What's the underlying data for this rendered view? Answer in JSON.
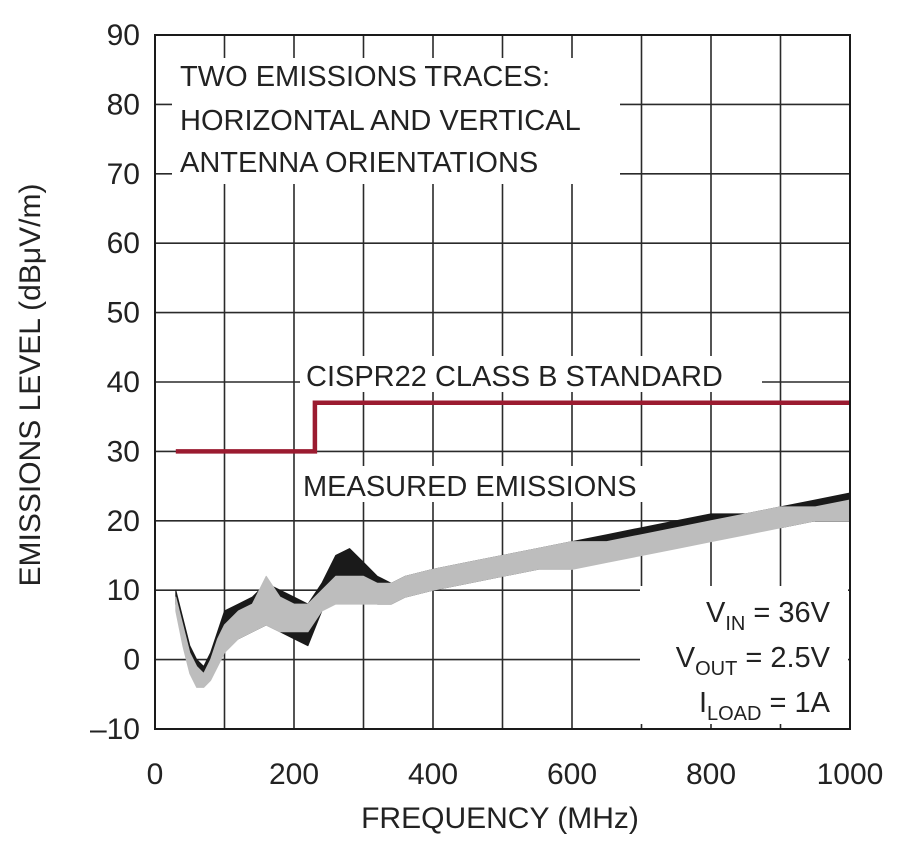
{
  "chart_data": {
    "type": "line",
    "xlabel": "FREQUENCY (MHz)",
    "ylabel": "EMISSIONS LEVEL (dBμV/m)",
    "xlim": [
      0,
      1000
    ],
    "ylim": [
      -10,
      90
    ],
    "x_ticks": [
      "0",
      "200",
      "400",
      "600",
      "800",
      "1000"
    ],
    "y_ticks": [
      "90",
      "80",
      "70",
      "60",
      "50",
      "40",
      "30",
      "20",
      "10",
      "0",
      "–10"
    ],
    "grid": true,
    "annotations": {
      "traces_note": [
        "TWO EMISSIONS TRACES:",
        "HORIZONTAL AND VERTICAL",
        "ANTENNA ORIENTATIONS"
      ],
      "standard_label": "CISPR22 CLASS B STANDARD",
      "measured_label": "MEASURED EMISSIONS",
      "conditions": [
        {
          "main": "V",
          "sub": "IN",
          "rest": " = 36V"
        },
        {
          "main": "V",
          "sub": "OUT",
          "rest": " = 2.5V"
        },
        {
          "main": "I",
          "sub": "LOAD",
          "rest": " = 1A"
        }
      ]
    },
    "colors": {
      "standard": "#9b1b30",
      "vertical_trace": "#1a1a1a",
      "horizontal_trace": "#bdbdbd",
      "grid": "#2a2a2a"
    },
    "series": [
      {
        "role": "standard-limit",
        "x": [
          30,
          230,
          230,
          1000
        ],
        "y": [
          30,
          30,
          37,
          37
        ]
      },
      {
        "role": "trace-vertical",
        "x": [
          30,
          40,
          50,
          60,
          70,
          80,
          90,
          100,
          120,
          140,
          160,
          180,
          200,
          220,
          240,
          260,
          280,
          300,
          320,
          340,
          360,
          400,
          450,
          500,
          550,
          600,
          650,
          700,
          750,
          800,
          850,
          900,
          950,
          1000
        ],
        "y_upper": [
          10,
          6,
          2,
          0,
          -1,
          1,
          4,
          7,
          8,
          9,
          11,
          10,
          9,
          8,
          11,
          15,
          16,
          14,
          12,
          11,
          12,
          13,
          14,
          15,
          16,
          17,
          18,
          19,
          20,
          21,
          21,
          22,
          23,
          24
        ],
        "y_lower": [
          8,
          3,
          -1,
          -3,
          -3,
          -2,
          0,
          2,
          3,
          4,
          5,
          4,
          3,
          2,
          7,
          10,
          10,
          9,
          8,
          8,
          9,
          10,
          11,
          12,
          13,
          14,
          15,
          16,
          17,
          18,
          19,
          19,
          20,
          21
        ]
      },
      {
        "role": "trace-horizontal",
        "x": [
          30,
          40,
          50,
          60,
          70,
          80,
          90,
          100,
          120,
          140,
          160,
          180,
          200,
          220,
          240,
          260,
          280,
          300,
          320,
          340,
          360,
          400,
          450,
          500,
          550,
          600,
          650,
          700,
          750,
          800,
          850,
          900,
          950,
          1000
        ],
        "y_upper": [
          9,
          5,
          1,
          -1,
          -2,
          0,
          3,
          5,
          7,
          8,
          12,
          9,
          8,
          8,
          10,
          12,
          12,
          12,
          11,
          11,
          12,
          13,
          14,
          15,
          16,
          17,
          17,
          18,
          19,
          20,
          21,
          22,
          22,
          23
        ],
        "y_lower": [
          7,
          2,
          -2,
          -4,
          -4,
          -3,
          -1,
          1,
          3,
          4,
          5,
          4,
          4,
          4,
          7,
          8,
          8,
          8,
          8,
          8,
          9,
          10,
          11,
          12,
          13,
          13,
          14,
          15,
          16,
          17,
          18,
          19,
          20,
          20
        ]
      }
    ]
  }
}
